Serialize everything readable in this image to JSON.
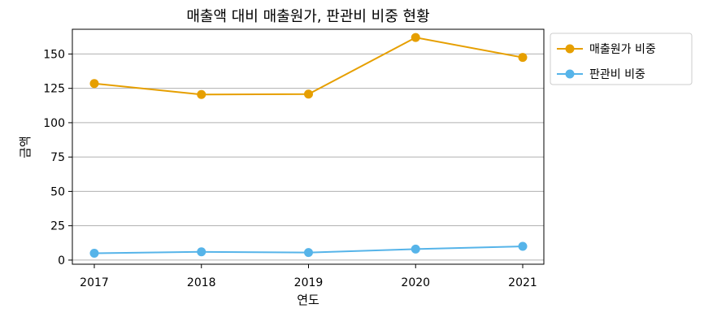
{
  "chart_data": {
    "type": "line",
    "title": "매출액 대비 매출원가, 판관비 비중 현황",
    "xlabel": "연도",
    "ylabel": "금액",
    "x": [
      "2017",
      "2018",
      "2019",
      "2020",
      "2021"
    ],
    "ylim": [
      -3,
      168
    ],
    "yticks": [
      0,
      25,
      50,
      75,
      100,
      125,
      150
    ],
    "grid": "y",
    "legend_position": "outside-top-right",
    "series": [
      {
        "name": "매출원가 비중",
        "color": "#E69F00",
        "values": [
          128.5,
          120.5,
          120.8,
          162.0,
          147.5
        ]
      },
      {
        "name": "판관비 비중",
        "color": "#56B4E9",
        "values": [
          5.0,
          6.0,
          5.5,
          8.0,
          10.0
        ]
      }
    ]
  }
}
